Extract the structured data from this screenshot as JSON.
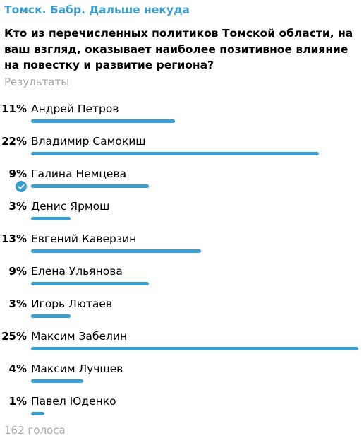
{
  "channel": {
    "name": "Томск. Бабр. Дальше некуда"
  },
  "poll": {
    "question": "Кто из перечисленных политиков Томской области, на ваш взгляд, оказывает наиболее позитивное влияние на повестку и развитие региона?",
    "type_label": "Результаты",
    "accent_color": "#3a9fd0",
    "options": [
      {
        "percent": "11%",
        "label": "Андрей Петров",
        "fraction": 0.11
      },
      {
        "percent": "22%",
        "label": "Владимир Самокиш",
        "fraction": 0.22
      },
      {
        "percent": "9%",
        "label": "Галина Немцева",
        "fraction": 0.09,
        "chosen": true,
        "chosen_icon": "check-circle-icon"
      },
      {
        "percent": "3%",
        "label": "Денис Ярмош",
        "fraction": 0.03
      },
      {
        "percent": "13%",
        "label": "Евгений Каверзин",
        "fraction": 0.13
      },
      {
        "percent": "9%",
        "label": "Елена Ульянова",
        "fraction": 0.09
      },
      {
        "percent": "3%",
        "label": "Игорь Лютаев",
        "fraction": 0.03
      },
      {
        "percent": "25%",
        "label": "Максим Забелин",
        "fraction": 0.25
      },
      {
        "percent": "4%",
        "label": "Максим Лучшев",
        "fraction": 0.04
      },
      {
        "percent": "1%",
        "label": "Павел Юденко",
        "fraction": 0.01
      }
    ],
    "votes_label": "162 голоса"
  }
}
